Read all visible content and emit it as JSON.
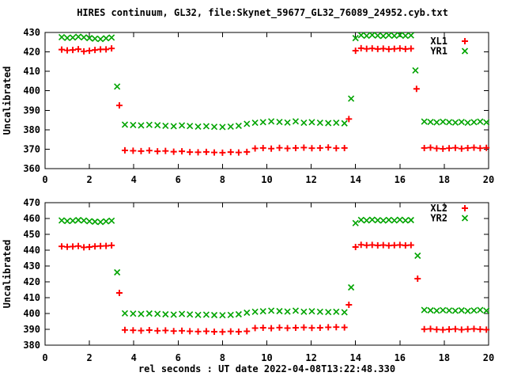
{
  "title": "HIRES continuum, GL32, file:Skynet_59677_GL32_76089_24952.cyb.txt",
  "xlabel": "rel seconds : UT date 2022-04-08T13:22:48.330",
  "colors": {
    "red": "#ff0000",
    "green": "#00a400",
    "axis": "#000000",
    "background": "#ffffff"
  },
  "chart_data": [
    {
      "type": "scatter",
      "ylabel": "Uncalibrated",
      "xlim": [
        0,
        20
      ],
      "ylim": [
        360,
        430
      ],
      "xticks": [
        0,
        2,
        4,
        6,
        8,
        10,
        12,
        14,
        16,
        18,
        20
      ],
      "yticks": [
        360,
        370,
        380,
        390,
        400,
        410,
        420,
        430
      ],
      "grid": false,
      "legend_position": "top-right",
      "series": [
        {
          "name": "XL1",
          "marker": "plus",
          "color": "#ff0000",
          "points": [
            [
              0.75,
              421.2
            ],
            [
              1.0,
              420.8
            ],
            [
              1.25,
              421.0
            ],
            [
              1.5,
              421.4
            ],
            [
              1.75,
              420.3
            ],
            [
              2.0,
              420.6
            ],
            [
              2.25,
              421.0
            ],
            [
              2.5,
              421.3
            ],
            [
              2.75,
              421.3
            ],
            [
              3.0,
              421.8
            ],
            [
              3.35,
              392.5
            ],
            [
              3.6,
              369.4
            ],
            [
              3.97,
              369.2
            ],
            [
              4.33,
              369.0
            ],
            [
              4.7,
              369.3
            ],
            [
              5.07,
              368.9
            ],
            [
              5.43,
              369.1
            ],
            [
              5.8,
              368.7
            ],
            [
              6.17,
              368.9
            ],
            [
              6.53,
              368.5
            ],
            [
              6.9,
              368.4
            ],
            [
              7.27,
              368.6
            ],
            [
              7.63,
              368.3
            ],
            [
              8.0,
              368.2
            ],
            [
              8.37,
              368.5
            ],
            [
              8.73,
              368.3
            ],
            [
              9.1,
              368.6
            ],
            [
              9.47,
              370.4
            ],
            [
              9.83,
              370.6
            ],
            [
              10.2,
              370.3
            ],
            [
              10.57,
              370.7
            ],
            [
              10.93,
              370.4
            ],
            [
              11.3,
              370.6
            ],
            [
              11.67,
              370.8
            ],
            [
              12.03,
              370.5
            ],
            [
              12.4,
              370.6
            ],
            [
              12.77,
              370.9
            ],
            [
              13.13,
              370.5
            ],
            [
              13.5,
              370.6
            ],
            [
              13.7,
              385.5
            ],
            [
              14.0,
              420.6
            ],
            [
              14.25,
              421.9
            ],
            [
              14.5,
              421.6
            ],
            [
              14.75,
              421.8
            ],
            [
              15.0,
              421.5
            ],
            [
              15.25,
              421.7
            ],
            [
              15.5,
              421.4
            ],
            [
              15.75,
              421.6
            ],
            [
              16.0,
              421.8
            ],
            [
              16.25,
              421.5
            ],
            [
              16.5,
              421.7
            ],
            [
              16.75,
              401.0
            ],
            [
              17.1,
              370.6
            ],
            [
              17.38,
              370.8
            ],
            [
              17.66,
              370.4
            ],
            [
              17.94,
              370.2
            ],
            [
              18.22,
              370.5
            ],
            [
              18.5,
              370.7
            ],
            [
              18.78,
              370.3
            ],
            [
              19.06,
              370.6
            ],
            [
              19.34,
              370.8
            ],
            [
              19.62,
              370.5
            ],
            [
              19.9,
              370.7
            ]
          ]
        },
        {
          "name": "YR1",
          "marker": "cross",
          "color": "#00a400",
          "points": [
            [
              0.75,
              427.6
            ],
            [
              1.0,
              427.2
            ],
            [
              1.25,
              427.4
            ],
            [
              1.5,
              427.8
            ],
            [
              1.75,
              427.5
            ],
            [
              2.0,
              427.1
            ],
            [
              2.25,
              426.8
            ],
            [
              2.5,
              426.6
            ],
            [
              2.75,
              427.0
            ],
            [
              3.0,
              427.4
            ],
            [
              3.25,
              402.2
            ],
            [
              3.6,
              382.6
            ],
            [
              3.97,
              382.4
            ],
            [
              4.33,
              382.2
            ],
            [
              4.7,
              382.5
            ],
            [
              5.07,
              382.3
            ],
            [
              5.43,
              382.0
            ],
            [
              5.8,
              381.8
            ],
            [
              6.17,
              382.2
            ],
            [
              6.53,
              381.9
            ],
            [
              6.9,
              381.6
            ],
            [
              7.27,
              381.8
            ],
            [
              7.63,
              381.5
            ],
            [
              8.0,
              381.4
            ],
            [
              8.37,
              381.6
            ],
            [
              8.73,
              382.0
            ],
            [
              9.1,
              383.0
            ],
            [
              9.47,
              383.6
            ],
            [
              9.83,
              383.9
            ],
            [
              10.2,
              384.3
            ],
            [
              10.57,
              384.0
            ],
            [
              10.93,
              383.7
            ],
            [
              11.3,
              384.3
            ],
            [
              11.67,
              383.6
            ],
            [
              12.03,
              383.9
            ],
            [
              12.4,
              383.6
            ],
            [
              12.77,
              383.4
            ],
            [
              13.13,
              383.6
            ],
            [
              13.5,
              383.3
            ],
            [
              13.8,
              396.0
            ],
            [
              14.0,
              427.1
            ],
            [
              14.25,
              428.6
            ],
            [
              14.5,
              428.3
            ],
            [
              14.75,
              428.7
            ],
            [
              15.0,
              428.4
            ],
            [
              15.25,
              428.2
            ],
            [
              15.5,
              428.6
            ],
            [
              15.75,
              428.3
            ],
            [
              16.0,
              428.7
            ],
            [
              16.25,
              428.3
            ],
            [
              16.5,
              428.5
            ],
            [
              16.7,
              410.5
            ],
            [
              17.1,
              384.2
            ],
            [
              17.38,
              384.0
            ],
            [
              17.66,
              383.8
            ],
            [
              17.94,
              384.1
            ],
            [
              18.22,
              383.9
            ],
            [
              18.5,
              383.7
            ],
            [
              18.78,
              384.0
            ],
            [
              19.06,
              383.6
            ],
            [
              19.34,
              383.9
            ],
            [
              19.62,
              384.2
            ],
            [
              19.9,
              383.8
            ]
          ]
        }
      ]
    },
    {
      "type": "scatter",
      "ylabel": "Uncalibrated",
      "xlim": [
        0,
        20
      ],
      "ylim": [
        380,
        470
      ],
      "xticks": [
        0,
        2,
        4,
        6,
        8,
        10,
        12,
        14,
        16,
        18,
        20
      ],
      "yticks": [
        380,
        390,
        400,
        410,
        420,
        430,
        440,
        450,
        460,
        470
      ],
      "grid": false,
      "legend_position": "top-right",
      "series": [
        {
          "name": "XL2",
          "marker": "plus",
          "color": "#ff0000",
          "points": [
            [
              0.75,
              442.4
            ],
            [
              1.0,
              442.1
            ],
            [
              1.25,
              442.3
            ],
            [
              1.5,
              442.6
            ],
            [
              1.75,
              441.8
            ],
            [
              2.0,
              442.0
            ],
            [
              2.25,
              442.4
            ],
            [
              2.5,
              442.6
            ],
            [
              2.75,
              442.7
            ],
            [
              3.0,
              443.0
            ],
            [
              3.35,
              413.0
            ],
            [
              3.6,
              389.6
            ],
            [
              3.97,
              389.4
            ],
            [
              4.33,
              389.2
            ],
            [
              4.7,
              389.5
            ],
            [
              5.07,
              389.1
            ],
            [
              5.43,
              389.3
            ],
            [
              5.8,
              388.9
            ],
            [
              6.17,
              389.1
            ],
            [
              6.53,
              388.8
            ],
            [
              6.9,
              388.6
            ],
            [
              7.27,
              388.8
            ],
            [
              7.63,
              388.5
            ],
            [
              8.0,
              388.4
            ],
            [
              8.37,
              388.7
            ],
            [
              8.73,
              388.5
            ],
            [
              9.1,
              388.8
            ],
            [
              9.47,
              390.8
            ],
            [
              9.83,
              391.0
            ],
            [
              10.2,
              390.7
            ],
            [
              10.57,
              391.1
            ],
            [
              10.93,
              390.8
            ],
            [
              11.3,
              391.0
            ],
            [
              11.67,
              391.2
            ],
            [
              12.03,
              390.9
            ],
            [
              12.4,
              391.0
            ],
            [
              12.77,
              391.3
            ],
            [
              13.13,
              391.4
            ],
            [
              13.5,
              391.2
            ],
            [
              13.7,
              405.5
            ],
            [
              14.0,
              442.0
            ],
            [
              14.25,
              443.4
            ],
            [
              14.5,
              443.1
            ],
            [
              14.75,
              443.3
            ],
            [
              15.0,
              443.0
            ],
            [
              15.25,
              443.2
            ],
            [
              15.5,
              442.9
            ],
            [
              15.75,
              443.1
            ],
            [
              16.0,
              443.3
            ],
            [
              16.25,
              443.0
            ],
            [
              16.5,
              443.2
            ],
            [
              16.8,
              422.0
            ],
            [
              17.1,
              390.1
            ],
            [
              17.38,
              390.3
            ],
            [
              17.66,
              389.9
            ],
            [
              17.94,
              389.7
            ],
            [
              18.22,
              390.0
            ],
            [
              18.5,
              390.2
            ],
            [
              18.78,
              389.8
            ],
            [
              19.06,
              390.1
            ],
            [
              19.34,
              390.3
            ],
            [
              19.62,
              390.0
            ],
            [
              19.9,
              389.8
            ]
          ]
        },
        {
          "name": "YR2",
          "marker": "cross",
          "color": "#00a400",
          "points": [
            [
              0.75,
              458.8
            ],
            [
              1.0,
              458.4
            ],
            [
              1.25,
              458.6
            ],
            [
              1.5,
              459.0
            ],
            [
              1.75,
              458.7
            ],
            [
              2.0,
              458.3
            ],
            [
              2.25,
              458.0
            ],
            [
              2.5,
              457.8
            ],
            [
              2.75,
              458.2
            ],
            [
              3.0,
              458.6
            ],
            [
              3.25,
              426.0
            ],
            [
              3.6,
              400.1
            ],
            [
              3.97,
              399.9
            ],
            [
              4.33,
              399.7
            ],
            [
              4.7,
              400.0
            ],
            [
              5.07,
              399.8
            ],
            [
              5.43,
              399.5
            ],
            [
              5.8,
              399.3
            ],
            [
              6.17,
              399.7
            ],
            [
              6.53,
              399.4
            ],
            [
              6.9,
              399.1
            ],
            [
              7.27,
              399.3
            ],
            [
              7.63,
              399.0
            ],
            [
              8.0,
              398.9
            ],
            [
              8.37,
              399.1
            ],
            [
              8.73,
              399.5
            ],
            [
              9.1,
              400.5
            ],
            [
              9.47,
              401.1
            ],
            [
              9.83,
              401.4
            ],
            [
              10.2,
              401.8
            ],
            [
              10.57,
              401.5
            ],
            [
              10.93,
              401.2
            ],
            [
              11.3,
              401.8
            ],
            [
              11.67,
              401.1
            ],
            [
              12.03,
              401.4
            ],
            [
              12.4,
              401.1
            ],
            [
              12.77,
              400.9
            ],
            [
              13.13,
              401.1
            ],
            [
              13.5,
              400.8
            ],
            [
              13.8,
              416.5
            ],
            [
              14.0,
              457.1
            ],
            [
              14.25,
              459.1
            ],
            [
              14.5,
              458.8
            ],
            [
              14.75,
              459.2
            ],
            [
              15.0,
              458.9
            ],
            [
              15.25,
              458.7
            ],
            [
              15.5,
              459.1
            ],
            [
              15.75,
              458.8
            ],
            [
              16.0,
              459.2
            ],
            [
              16.25,
              458.8
            ],
            [
              16.5,
              459.0
            ],
            [
              16.8,
              436.5
            ],
            [
              17.1,
              402.2
            ],
            [
              17.38,
              402.0
            ],
            [
              17.66,
              401.8
            ],
            [
              17.94,
              402.1
            ],
            [
              18.22,
              401.9
            ],
            [
              18.5,
              401.7
            ],
            [
              18.78,
              402.0
            ],
            [
              19.06,
              401.6
            ],
            [
              19.34,
              401.9
            ],
            [
              19.62,
              402.2
            ],
            [
              19.9,
              401.8
            ]
          ]
        }
      ]
    }
  ]
}
